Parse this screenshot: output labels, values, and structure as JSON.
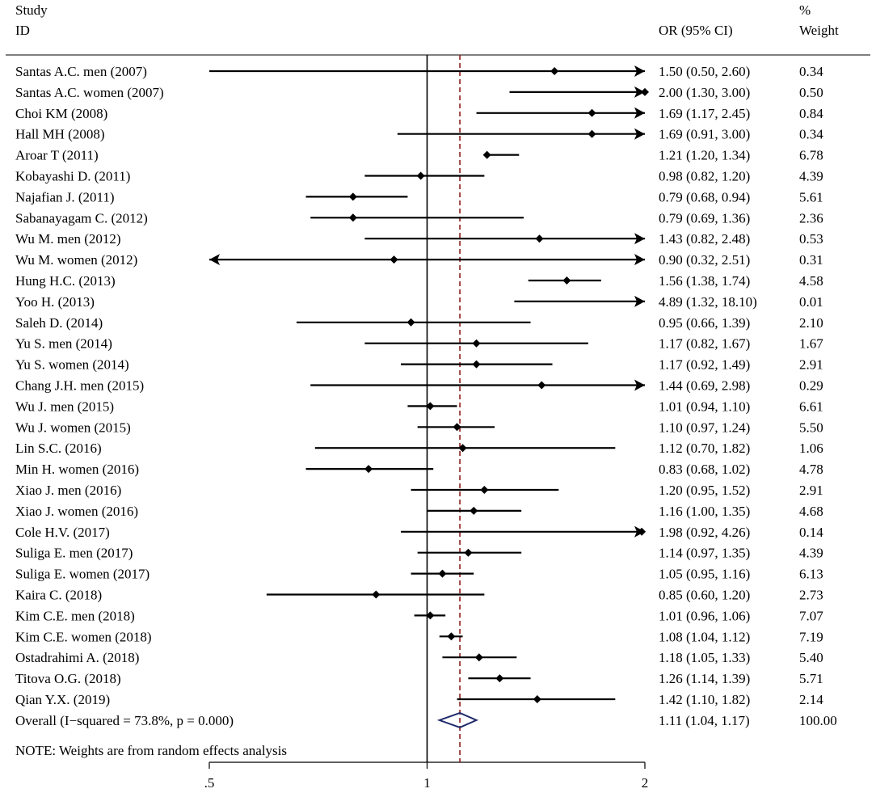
{
  "chart_data": {
    "type": "forest",
    "header": {
      "study_line1": "Study",
      "study_line2": "ID",
      "or_label": "OR (95% CI)",
      "weight_line1": "%",
      "weight_line2": "Weight"
    },
    "x_ticks": [
      {
        "value": 0.5,
        "label": ".5"
      },
      {
        "value": 1,
        "label": "1"
      },
      {
        "value": 2,
        "label": "2"
      }
    ],
    "xlim": [
      0.5,
      2.0
    ],
    "scale": "log",
    "null_line": 1,
    "pooled_line": 1.11,
    "studies": [
      {
        "label": "Santas A.C. men (2007)",
        "or": 1.5,
        "lo": 0.5,
        "hi": 2.6,
        "ci_text": "1.50 (0.50, 2.60)",
        "weight": "0.34"
      },
      {
        "label": "Santas A.C. women (2007)",
        "or": 2.0,
        "lo": 1.3,
        "hi": 3.0,
        "ci_text": "2.00 (1.30, 3.00)",
        "weight": "0.50"
      },
      {
        "label": "Choi KM (2008)",
        "or": 1.69,
        "lo": 1.17,
        "hi": 2.45,
        "ci_text": "1.69 (1.17, 2.45)",
        "weight": "0.84"
      },
      {
        "label": "Hall MH (2008)",
        "or": 1.69,
        "lo": 0.91,
        "hi": 3.0,
        "ci_text": "1.69 (0.91, 3.00)",
        "weight": "0.34"
      },
      {
        "label": "Aroar T (2011)",
        "or": 1.21,
        "lo": 1.2,
        "hi": 1.34,
        "ci_text": "1.21 (1.20, 1.34)",
        "weight": "6.78"
      },
      {
        "label": "Kobayashi D. (2011)",
        "or": 0.98,
        "lo": 0.82,
        "hi": 1.2,
        "ci_text": "0.98 (0.82, 1.20)",
        "weight": "4.39"
      },
      {
        "label": "Najafian J. (2011)",
        "or": 0.79,
        "lo": 0.68,
        "hi": 0.94,
        "ci_text": "0.79 (0.68, 0.94)",
        "weight": "5.61"
      },
      {
        "label": "Sabanayagam C. (2012)",
        "or": 0.79,
        "lo": 0.69,
        "hi": 1.36,
        "ci_text": "0.79 (0.69, 1.36)",
        "weight": "2.36"
      },
      {
        "label": "Wu M. men (2012)",
        "or": 1.43,
        "lo": 0.82,
        "hi": 2.48,
        "ci_text": "1.43 (0.82, 2.48)",
        "weight": "0.53"
      },
      {
        "label": "Wu M. women (2012)",
        "or": 0.9,
        "lo": 0.32,
        "hi": 2.51,
        "ci_text": "0.90 (0.32, 2.51)",
        "weight": "0.31"
      },
      {
        "label": "Hung H.C. (2013)",
        "or": 1.56,
        "lo": 1.38,
        "hi": 1.74,
        "ci_text": "1.56 (1.38, 1.74)",
        "weight": "4.58"
      },
      {
        "label": "Yoo H. (2013)",
        "or": 4.89,
        "lo": 1.32,
        "hi": 18.1,
        "ci_text": "4.89 (1.32, 18.10)",
        "weight": "0.01"
      },
      {
        "label": "Saleh D. (2014)",
        "or": 0.95,
        "lo": 0.66,
        "hi": 1.39,
        "ci_text": "0.95 (0.66, 1.39)",
        "weight": "2.10"
      },
      {
        "label": "Yu S. men (2014)",
        "or": 1.17,
        "lo": 0.82,
        "hi": 1.67,
        "ci_text": "1.17 (0.82, 1.67)",
        "weight": "1.67"
      },
      {
        "label": "Yu S. women (2014)",
        "or": 1.17,
        "lo": 0.92,
        "hi": 1.49,
        "ci_text": "1.17 (0.92, 1.49)",
        "weight": "2.91"
      },
      {
        "label": "Chang J.H. men (2015)",
        "or": 1.44,
        "lo": 0.69,
        "hi": 2.98,
        "ci_text": "1.44 (0.69, 2.98)",
        "weight": "0.29"
      },
      {
        "label": "Wu J. men (2015)",
        "or": 1.01,
        "lo": 0.94,
        "hi": 1.1,
        "ci_text": "1.01 (0.94, 1.10)",
        "weight": "6.61"
      },
      {
        "label": "Wu J. women (2015)",
        "or": 1.1,
        "lo": 0.97,
        "hi": 1.24,
        "ci_text": "1.10 (0.97, 1.24)",
        "weight": "5.50"
      },
      {
        "label": "Lin S.C. (2016)",
        "or": 1.12,
        "lo": 0.7,
        "hi": 1.82,
        "ci_text": "1.12 (0.70, 1.82)",
        "weight": "1.06"
      },
      {
        "label": "Min H. women (2016)",
        "or": 0.83,
        "lo": 0.68,
        "hi": 1.02,
        "ci_text": "0.83 (0.68, 1.02)",
        "weight": "4.78"
      },
      {
        "label": "Xiao J. men (2016)",
        "or": 1.2,
        "lo": 0.95,
        "hi": 1.52,
        "ci_text": "1.20 (0.95, 1.52)",
        "weight": "2.91"
      },
      {
        "label": "Xiao J. women (2016)",
        "or": 1.16,
        "lo": 1.0,
        "hi": 1.35,
        "ci_text": "1.16 (1.00, 1.35)",
        "weight": "4.68"
      },
      {
        "label": "Cole H.V. (2017)",
        "or": 1.98,
        "lo": 0.92,
        "hi": 4.26,
        "ci_text": "1.98 (0.92, 4.26)",
        "weight": "0.14"
      },
      {
        "label": "Suliga E. men (2017)",
        "or": 1.14,
        "lo": 0.97,
        "hi": 1.35,
        "ci_text": "1.14 (0.97, 1.35)",
        "weight": "4.39"
      },
      {
        "label": "Suliga E. women (2017)",
        "or": 1.05,
        "lo": 0.95,
        "hi": 1.16,
        "ci_text": "1.05 (0.95, 1.16)",
        "weight": "6.13"
      },
      {
        "label": "Kaira C. (2018)",
        "or": 0.85,
        "lo": 0.6,
        "hi": 1.2,
        "ci_text": "0.85 (0.60, 1.20)",
        "weight": "2.73"
      },
      {
        "label": "Kim C.E. men (2018)",
        "or": 1.01,
        "lo": 0.96,
        "hi": 1.06,
        "ci_text": "1.01 (0.96, 1.06)",
        "weight": "7.07"
      },
      {
        "label": "Kim C.E. women (2018)",
        "or": 1.08,
        "lo": 1.04,
        "hi": 1.12,
        "ci_text": "1.08 (1.04, 1.12)",
        "weight": "7.19"
      },
      {
        "label": "Ostadrahimi A. (2018)",
        "or": 1.18,
        "lo": 1.05,
        "hi": 1.33,
        "ci_text": "1.18 (1.05, 1.33)",
        "weight": "5.40"
      },
      {
        "label": "Titova O.G. (2018)",
        "or": 1.26,
        "lo": 1.14,
        "hi": 1.39,
        "ci_text": "1.26 (1.14, 1.39)",
        "weight": "5.71"
      },
      {
        "label": "Qian Y.X. (2019)",
        "or": 1.42,
        "lo": 1.1,
        "hi": 1.82,
        "ci_text": "1.42 (1.10, 1.82)",
        "weight": "2.14"
      }
    ],
    "overall": {
      "label": "Overall  (I−squared = 73.8%, p = 0.000)",
      "or": 1.11,
      "lo": 1.04,
      "hi": 1.17,
      "ci_text": "1.11 (1.04, 1.17)",
      "weight": "100.00"
    },
    "note": "NOTE: Weights are from random effects analysis",
    "colors": {
      "null_line": "#000000",
      "pooled_line": "#8b1a1a",
      "diamond": "#1f2b6b",
      "ci_line": "#000000",
      "marker": "#000000"
    }
  }
}
